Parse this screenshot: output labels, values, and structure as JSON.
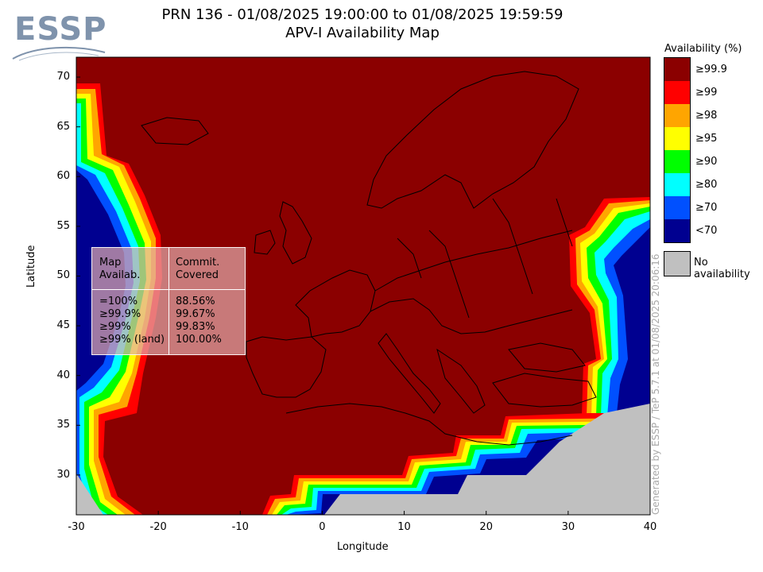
{
  "header": {
    "title_line1": "PRN 136 - 01/08/2025 19:00:00 to 01/08/2025 19:59:59",
    "title_line2": "APV-I Availability Map",
    "logo_text": "ESSP"
  },
  "axes": {
    "xlabel": "Longitude",
    "ylabel": "Latitude",
    "x_ticks": [
      "-30",
      "-20",
      "-10",
      "0",
      "10",
      "20",
      "30",
      "40"
    ],
    "y_ticks": [
      "70",
      "65",
      "60",
      "55",
      "50",
      "45",
      "40",
      "35",
      "30"
    ],
    "xlim": [
      -30,
      40
    ],
    "ylim": [
      26,
      72
    ]
  },
  "stats_table": {
    "col1_header": "Map\nAvailab.",
    "col2_header": "Commit.\nCovered",
    "col1_values": "=100%\n≥99.9%\n≥99%\n≥99% (land)",
    "col2_values": "88.56%\n99.67%\n99.83%\n100.00%"
  },
  "legend": {
    "title": "Availability (%)",
    "items": [
      {
        "label": "≥99.9",
        "color": "#8b0000"
      },
      {
        "label": "≥99",
        "color": "#ff0000"
      },
      {
        "label": "≥98",
        "color": "#ffa500"
      },
      {
        "label": "≥95",
        "color": "#ffff00"
      },
      {
        "label": "≥90",
        "color": "#00ff00"
      },
      {
        "label": "≥80",
        "color": "#00ffff"
      },
      {
        "label": "≥70",
        "color": "#0050ff"
      },
      {
        "label": "<70",
        "color": "#000090"
      }
    ],
    "no_availability_label": "No availability",
    "no_availability_color": "#c0c0c0"
  },
  "footer": {
    "generated_text": "Generated by ESSP / TeP 5.7.1 at 01/08/2025 20:06:16"
  },
  "chart_data": {
    "type": "heatmap",
    "title": "PRN 136 - 01/08/2025 19:00:00 to 01/08/2025 19:59:59",
    "subtitle": "APV-I Availability Map",
    "xlabel": "Longitude",
    "ylabel": "Latitude",
    "xlim": [
      -30,
      40
    ],
    "ylim": [
      26,
      72
    ],
    "dominant_class": "≥99.9"
  }
}
